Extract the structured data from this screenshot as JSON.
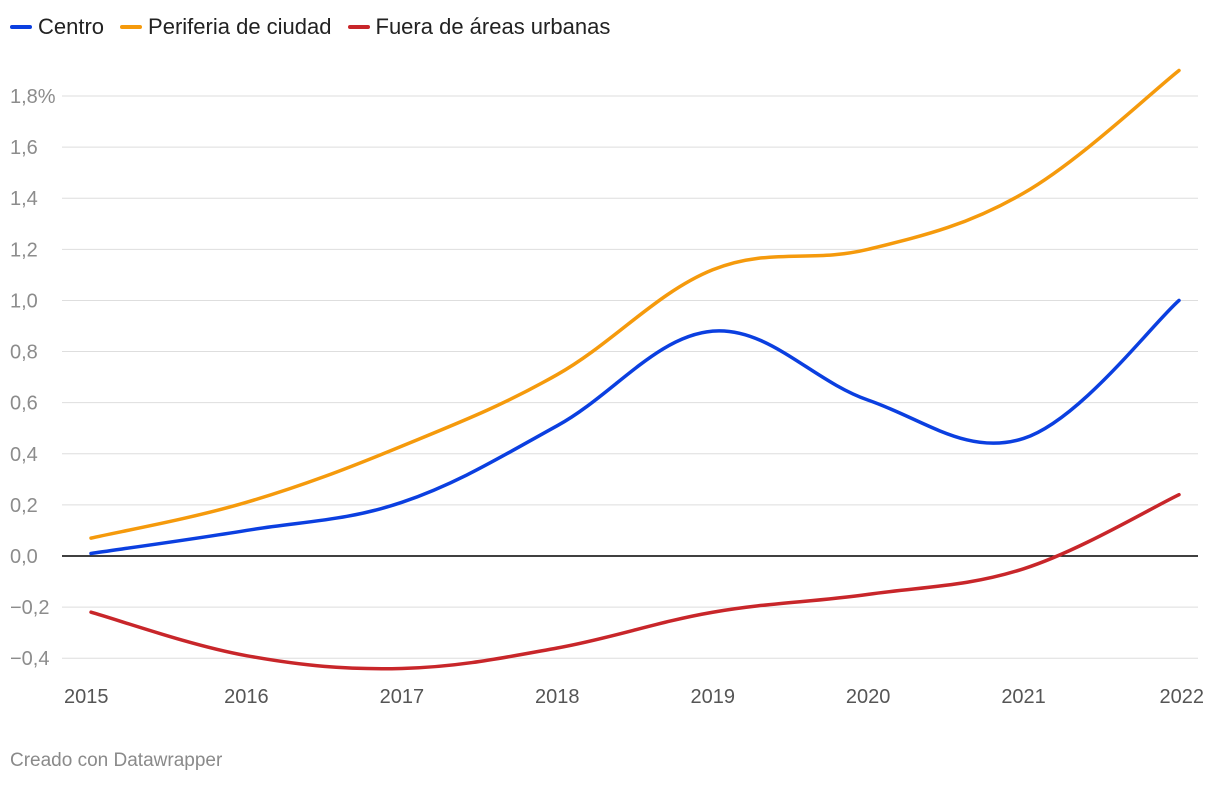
{
  "chart_data": {
    "type": "line",
    "x": [
      2015,
      2016,
      2017,
      2018,
      2019,
      2020,
      2021,
      2022
    ],
    "x_labels": [
      "2015",
      "2016",
      "2017",
      "2018",
      "2019",
      "2020",
      "2021",
      "2022"
    ],
    "series": [
      {
        "name": "Centro",
        "color": "#0b3fe0",
        "values": [
          0.01,
          0.1,
          0.21,
          0.51,
          0.88,
          0.61,
          0.46,
          1.0
        ]
      },
      {
        "name": "Periferia de ciudad",
        "color": "#f59a0c",
        "values": [
          0.07,
          0.21,
          0.43,
          0.71,
          1.12,
          1.2,
          1.42,
          1.9
        ]
      },
      {
        "name": "Fuera de áreas urbanas",
        "color": "#c8262a",
        "values": [
          -0.22,
          -0.39,
          -0.44,
          -0.36,
          -0.22,
          -0.15,
          -0.05,
          0.24
        ]
      }
    ],
    "y_ticks": [
      {
        "value": 1.8,
        "label": "1,8%"
      },
      {
        "value": 1.6,
        "label": "1,6"
      },
      {
        "value": 1.4,
        "label": "1,4"
      },
      {
        "value": 1.2,
        "label": "1,2"
      },
      {
        "value": 1.0,
        "label": "1,0"
      },
      {
        "value": 0.8,
        "label": "0,8"
      },
      {
        "value": 0.6,
        "label": "0,6"
      },
      {
        "value": 0.4,
        "label": "0,4"
      },
      {
        "value": 0.2,
        "label": "0,2"
      },
      {
        "value": 0.0,
        "label": "0,0"
      },
      {
        "value": -0.2,
        "label": "−0,2"
      },
      {
        "value": -0.4,
        "label": "−0,4"
      }
    ],
    "ylim": [
      -0.45,
      1.9
    ],
    "xlabel": "",
    "ylabel": "",
    "grid": true,
    "legend_position": "top-left"
  },
  "footer": {
    "credit": "Creado con Datawrapper"
  }
}
